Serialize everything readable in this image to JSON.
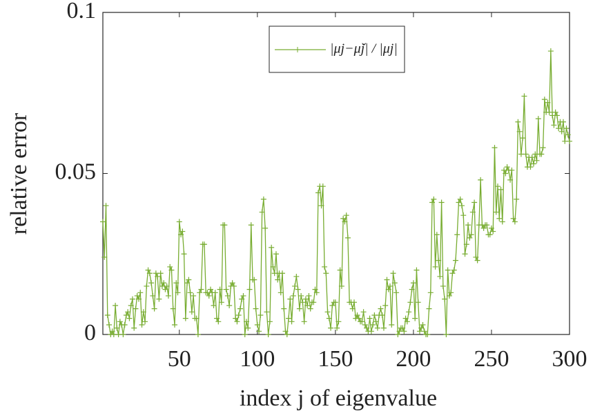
{
  "chart_data": {
    "type": "line",
    "xlabel": "index j of eigenvalue",
    "ylabel": "relative error",
    "xlim": [
      1,
      300
    ],
    "ylim": [
      0,
      0.1
    ],
    "xticks": [
      50,
      100,
      150,
      200,
      250,
      300
    ],
    "yticks": [
      0,
      0.05,
      0.1
    ],
    "legend": "top-center",
    "x": [
      1,
      2,
      3,
      4,
      5,
      6,
      7,
      8,
      9,
      10,
      11,
      12,
      13,
      14,
      15,
      16,
      17,
      18,
      19,
      20,
      21,
      22,
      23,
      24,
      25,
      26,
      27,
      28,
      29,
      30,
      31,
      32,
      33,
      34,
      35,
      36,
      37,
      38,
      39,
      40,
      41,
      42,
      43,
      44,
      45,
      46,
      47,
      48,
      49,
      50,
      51,
      52,
      53,
      54,
      55,
      56,
      57,
      58,
      59,
      60,
      61,
      62,
      63,
      64,
      65,
      66,
      67,
      68,
      69,
      70,
      71,
      72,
      73,
      74,
      75,
      76,
      77,
      78,
      79,
      80,
      81,
      82,
      83,
      84,
      85,
      86,
      87,
      88,
      89,
      90,
      91,
      92,
      93,
      94,
      95,
      96,
      97,
      98,
      99,
      100,
      101,
      102,
      103,
      104,
      105,
      106,
      107,
      108,
      109,
      110,
      111,
      112,
      113,
      114,
      115,
      116,
      117,
      118,
      119,
      120,
      121,
      122,
      123,
      124,
      125,
      126,
      127,
      128,
      129,
      130,
      131,
      132,
      133,
      134,
      135,
      136,
      137,
      138,
      139,
      140,
      141,
      142,
      143,
      144,
      145,
      146,
      147,
      148,
      149,
      150,
      151,
      152,
      153,
      154,
      155,
      156,
      157,
      158,
      159,
      160,
      161,
      162,
      163,
      164,
      165,
      166,
      167,
      168,
      169,
      170,
      171,
      172,
      173,
      174,
      175,
      176,
      177,
      178,
      179,
      180,
      181,
      182,
      183,
      184,
      185,
      186,
      187,
      188,
      189,
      190,
      191,
      192,
      193,
      194,
      195,
      196,
      197,
      198,
      199,
      200,
      201,
      202,
      203,
      204,
      205,
      206,
      207,
      208,
      209,
      210,
      211,
      212,
      213,
      214,
      215,
      216,
      217,
      218,
      219,
      220,
      221,
      222,
      223,
      224,
      225,
      226,
      227,
      228,
      229,
      230,
      231,
      232,
      233,
      234,
      235,
      236,
      237,
      238,
      239,
      240,
      241,
      242,
      243,
      244,
      245,
      246,
      247,
      248,
      249,
      250,
      251,
      252,
      253,
      254,
      255,
      256,
      257,
      258,
      259,
      260,
      261,
      262,
      263,
      264,
      265,
      266,
      267,
      268,
      269,
      270,
      271,
      272,
      273,
      274,
      275,
      276,
      277,
      278,
      279,
      280,
      281,
      282,
      283,
      284,
      285,
      286,
      287,
      288,
      289,
      290,
      291,
      292,
      293,
      294,
      295,
      296,
      297,
      298,
      299,
      300
    ],
    "series": [
      {
        "name": "|μj−μ̌j| / |μj|",
        "color": "#77ac30",
        "values": [
          0.035,
          0.024,
          0.04,
          0.006,
          0.003,
          0.0,
          0.001,
          0.0,
          0.009,
          0.002,
          0.0,
          0.004,
          0.003,
          0.0,
          0.003,
          0.006,
          0.007,
          0.005,
          0.009,
          0.011,
          0.002,
          0.008,
          0.012,
          0.011,
          0.013,
          0.003,
          0.007,
          0.004,
          0.015,
          0.02,
          0.019,
          0.016,
          0.012,
          0.008,
          0.019,
          0.018,
          0.011,
          0.019,
          0.015,
          0.016,
          0.014,
          0.015,
          0.012,
          0.021,
          0.02,
          0.008,
          0.003,
          0.016,
          0.013,
          0.035,
          0.031,
          0.032,
          0.025,
          0.005,
          0.016,
          0.017,
          0.013,
          0.007,
          0.012,
          0.005,
          0.005,
          0.0,
          0.013,
          0.014,
          0.028,
          0.028,
          0.013,
          0.013,
          0.012,
          0.014,
          0.013,
          0.009,
          0.013,
          0.005,
          0.004,
          0.014,
          0.01,
          0.034,
          0.034,
          0.014,
          0.012,
          0.009,
          0.015,
          0.016,
          0.015,
          0.005,
          0.004,
          0.006,
          0.008,
          0.011,
          0.012,
          0.0,
          0.004,
          0.002,
          0.014,
          0.034,
          0.017,
          0.017,
          0.008,
          0.003,
          0.001,
          0.006,
          0.038,
          0.042,
          0.033,
          0.007,
          0.0,
          0.004,
          0.027,
          0.021,
          0.019,
          0.025,
          0.017,
          0.019,
          0.013,
          0.019,
          0.008,
          0.001,
          0.0,
          0.005,
          0.011,
          0.004,
          0.012,
          0.015,
          0.018,
          0.014,
          0.008,
          0.012,
          0.01,
          0.004,
          0.011,
          0.009,
          0.012,
          0.008,
          0.01,
          0.01,
          0.014,
          0.013,
          0.044,
          0.046,
          0.04,
          0.046,
          0.021,
          0.019,
          0.007,
          0.005,
          0.002,
          0.009,
          0.01,
          0.01,
          0.002,
          0.004,
          0.02,
          0.015,
          0.036,
          0.035,
          0.037,
          0.03,
          0.01,
          0.01,
          0.008,
          0.01,
          0.005,
          0.006,
          0.005,
          0.004,
          0.004,
          0.007,
          0.003,
          0.002,
          0.001,
          0.005,
          0.001,
          0.003,
          0.006,
          0.004,
          0.002,
          0.006,
          0.008,
          0.006,
          0.002,
          0.009,
          0.017,
          0.014,
          0.015,
          0.003,
          0.019,
          0.016,
          0.013,
          0.0,
          0.001,
          0.002,
          0.002,
          0.001,
          0.005,
          0.004,
          0.007,
          0.01,
          0.014,
          0.016,
          0.005,
          0.02,
          0.01,
          0.001,
          0.002,
          0.003,
          0.001,
          0.0,
          0.0,
          0.008,
          0.013,
          0.041,
          0.042,
          0.021,
          0.031,
          0.023,
          0.018,
          0.041,
          0.015,
          0.011,
          0.0,
          0.02,
          0.012,
          0.013,
          0.019,
          0.02,
          0.023,
          0.031,
          0.041,
          0.042,
          0.04,
          0.037,
          0.025,
          0.028,
          0.034,
          0.03,
          0.031,
          0.038,
          0.041,
          0.024,
          0.023,
          0.034,
          0.048,
          0.034,
          0.033,
          0.034,
          0.034,
          0.031,
          0.031,
          0.033,
          0.032,
          0.058,
          0.038,
          0.046,
          0.036,
          0.045,
          0.035,
          0.051,
          0.05,
          0.052,
          0.051,
          0.048,
          0.051,
          0.036,
          0.035,
          0.042,
          0.066,
          0.063,
          0.056,
          0.061,
          0.074,
          0.056,
          0.052,
          0.055,
          0.052,
          0.055,
          0.053,
          0.056,
          0.054,
          0.067,
          0.056,
          0.056,
          0.058,
          0.073,
          0.069,
          0.072,
          0.069,
          0.088,
          0.068,
          0.065,
          0.069,
          0.068,
          0.064,
          0.066,
          0.063,
          0.066,
          0.06,
          0.064,
          0.062,
          0.06
        ]
      }
    ]
  }
}
